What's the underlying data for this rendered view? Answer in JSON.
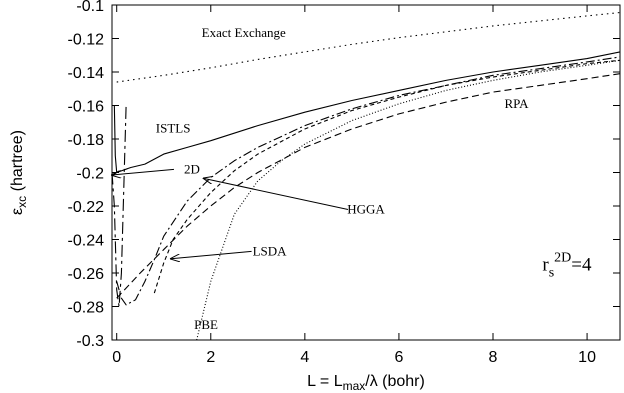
{
  "chart_data": {
    "type": "line",
    "xlabel": {
      "pre": "L = L",
      "sub": "max",
      "post": "/λ (bohr)"
    },
    "ylabel": {
      "pre": "ε",
      "sub": "xc",
      "post": " (hartree)"
    },
    "xlim": [
      -0.1,
      10.7
    ],
    "ylim": [
      -0.3,
      -0.1
    ],
    "xticks": [
      0,
      2,
      4,
      6,
      8,
      10
    ],
    "xtick_labels": [
      "0",
      "2",
      "4",
      "6",
      "8",
      "10"
    ],
    "yticks": [
      -0.1,
      -0.12,
      -0.14,
      -0.16,
      -0.18,
      -0.2,
      -0.22,
      -0.24,
      -0.26,
      -0.28,
      -0.3
    ],
    "ytick_labels": [
      "-0.1",
      "-0.12",
      "-0.14",
      "-0.16",
      "-0.18",
      "-0.2",
      "-0.22",
      "-0.24",
      "-0.26",
      "-0.28",
      "-0.3"
    ],
    "grid": false,
    "legend": "none",
    "series": [
      {
        "name": "Exact Exchange",
        "dash": "1.5,4",
        "x": [
          0,
          1,
          2,
          3,
          4,
          5,
          6,
          7,
          8,
          9,
          10,
          10.7
        ],
        "y": [
          -0.146,
          -0.142,
          -0.1375,
          -0.1325,
          -0.128,
          -0.1235,
          -0.1195,
          -0.116,
          -0.1125,
          -0.1095,
          -0.1065,
          -0.1045
        ]
      },
      {
        "name": "ISTLS",
        "dash": "",
        "x": [
          -0.1,
          0,
          0.3,
          0.6,
          1,
          1.5,
          2,
          3,
          4,
          5,
          6,
          7,
          8,
          9,
          10,
          10.7
        ],
        "y": [
          -0.202,
          -0.2,
          -0.197,
          -0.195,
          -0.189,
          -0.185,
          -0.181,
          -0.172,
          -0.164,
          -0.157,
          -0.151,
          -0.145,
          -0.14,
          -0.136,
          -0.132,
          -0.128
        ]
      },
      {
        "name": "2D",
        "dash": "12,4,3,4",
        "x": [
          -0.1,
          -0.05,
          0,
          0.05,
          0.1,
          0.15,
          0.2
        ],
        "y": [
          -0.2,
          -0.22,
          -0.27,
          -0.28,
          -0.26,
          -0.21,
          -0.16
        ]
      },
      {
        "name": "HGGA",
        "dash": "9,3,2,3",
        "x": [
          0,
          0.1,
          0.2,
          0.4,
          0.6,
          0.8,
          1,
          1.5,
          2,
          2.5,
          3,
          4,
          5,
          6,
          7,
          8,
          9,
          10,
          10.7
        ],
        "y": [
          -0.265,
          -0.275,
          -0.279,
          -0.276,
          -0.265,
          -0.252,
          -0.238,
          -0.217,
          -0.203,
          -0.193,
          -0.185,
          -0.172,
          -0.162,
          -0.154,
          -0.148,
          -0.142,
          -0.138,
          -0.134,
          -0.131
        ]
      },
      {
        "name": "LSDA",
        "dash": "4,3",
        "x": [
          0.8,
          1,
          1.2,
          1.5,
          2,
          2.5,
          3,
          4,
          5,
          6,
          7,
          8,
          9,
          10,
          10.7
        ],
        "y": [
          -0.272,
          -0.254,
          -0.24,
          -0.228,
          -0.212,
          -0.199,
          -0.189,
          -0.174,
          -0.163,
          -0.155,
          -0.148,
          -0.143,
          -0.139,
          -0.135,
          -0.133
        ]
      },
      {
        "name": "PBE",
        "dash": "1,2",
        "x": [
          1.7,
          2,
          2.5,
          3,
          3.5,
          4,
          5,
          6,
          7,
          8,
          9,
          10,
          10.7
        ],
        "y": [
          -0.3,
          -0.265,
          -0.225,
          -0.205,
          -0.193,
          -0.183,
          -0.169,
          -0.159,
          -0.151,
          -0.145,
          -0.14,
          -0.136,
          -0.133
        ]
      },
      {
        "name": "RPA",
        "dash": "7,4",
        "x": [
          0,
          0.5,
          1,
          1.5,
          2,
          2.5,
          3,
          4,
          5,
          6,
          7,
          8,
          9,
          10,
          10.7
        ],
        "y": [
          -0.275,
          -0.26,
          -0.246,
          -0.232,
          -0.22,
          -0.209,
          -0.2,
          -0.185,
          -0.174,
          -0.165,
          -0.158,
          -0.152,
          -0.148,
          -0.144,
          -0.141
        ]
      },
      {
        "name": "x=0 drop",
        "dash": "",
        "x": [
          -0.05,
          -0.03,
          0,
          0.02
        ],
        "y": [
          -0.16,
          -0.19,
          -0.2,
          -0.2
        ]
      }
    ],
    "annotations": [
      {
        "text": "Exact Exchange",
        "x": 2.7,
        "y": -0.119,
        "anchor": "middle"
      },
      {
        "text": "ISTLS",
        "x": 1.2,
        "y": -0.176,
        "anchor": "middle"
      },
      {
        "text": "RPA",
        "x": 8.5,
        "y": -0.1615,
        "anchor": "middle"
      },
      {
        "text": "2D",
        "x": 1.6,
        "y": -0.2005,
        "anchor": "middle",
        "arrow_to": [
          -0.1,
          -0.2015
        ]
      },
      {
        "text": "HGGA",
        "x": 5.3,
        "y": -0.2245,
        "anchor": "middle",
        "arrow_to": [
          1.85,
          -0.2035
        ]
      },
      {
        "text": "LSDA",
        "x": 3.25,
        "y": -0.2495,
        "anchor": "middle",
        "arrow_to": [
          1.15,
          -0.2515
        ]
      },
      {
        "text": "PBE",
        "x": 1.9,
        "y": -0.2935,
        "anchor": "middle"
      }
    ],
    "rs_label": {
      "pre": "r",
      "sub": "s",
      "sup": "2D",
      "post": "=4",
      "x": 9.05,
      "y": -0.2585
    }
  }
}
